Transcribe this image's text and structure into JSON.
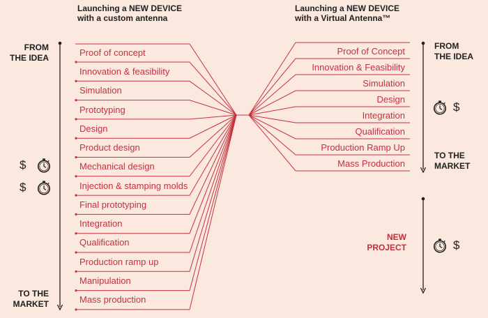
{
  "left": {
    "heading_line1": "Launching a NEW DEVICE",
    "heading_line2": "with a custom antenna",
    "from_line1": "FROM",
    "from_line2": "THE IDEA",
    "to_line1": "TO THE",
    "to_line2": "MARKET",
    "steps": [
      "Proof of concept",
      "Innovation & feasibility",
      "Simulation",
      "Prototyping",
      "Design",
      "Product design",
      "Mechanical design",
      "Injection & stamping molds",
      "Final prototyping",
      "Integration",
      "Qualification",
      "Production ramp up",
      "Manipulation",
      "Mass production"
    ],
    "cost_symbol_1": "$",
    "cost_symbol_2": "$"
  },
  "right": {
    "heading_line1": "Launching a NEW DEVICE",
    "heading_line2": "with a Virtual Antenna™",
    "from_line1": "FROM",
    "from_line2": "THE IDEA",
    "to_line1": "TO THE",
    "to_line2": "MARKET",
    "new_line1": "NEW",
    "new_line2": "PROJECT",
    "steps": [
      "Proof of Concept",
      "Innovation & Feasibility",
      "Simulation",
      "Design",
      "Integration",
      "Qualification",
      "Production Ramp Up",
      "Mass Production"
    ],
    "cost_symbol_1": "$",
    "cost_symbol_2": "$"
  },
  "colors": {
    "background": "#fbe8df",
    "accent": "#c7303d",
    "ink": "#1f1f1f"
  },
  "icons": [
    "stopwatch-icon",
    "dollar-icon"
  ]
}
